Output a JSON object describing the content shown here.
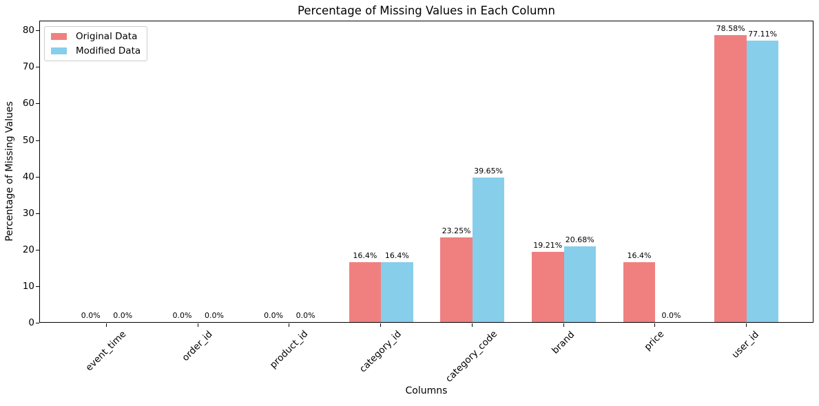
{
  "chart_data": {
    "type": "bar",
    "title": "Percentage of Missing Values in Each Column",
    "xlabel": "Columns",
    "ylabel": "Percentage of Missing Values",
    "categories": [
      "event_time",
      "order_id",
      "product_id",
      "category_id",
      "category_code",
      "brand",
      "price",
      "user_id"
    ],
    "series": [
      {
        "name": "Original Data",
        "color": "#F08080",
        "values": [
          0.0,
          0.0,
          0.0,
          16.4,
          23.25,
          19.21,
          16.4,
          78.58
        ],
        "value_labels": [
          "0.0%",
          "0.0%",
          "0.0%",
          "16.4%",
          "23.25%",
          "19.21%",
          "16.4%",
          "78.58%"
        ]
      },
      {
        "name": "Modified Data",
        "color": "#87CEEB",
        "values": [
          0.0,
          0.0,
          0.0,
          16.4,
          39.65,
          20.68,
          0.0,
          77.11
        ],
        "value_labels": [
          "0.0%",
          "0.0%",
          "0.0%",
          "16.4%",
          "39.65%",
          "20.68%",
          "0.0%",
          "77.11%"
        ]
      }
    ],
    "yticks": [
      0,
      10,
      20,
      30,
      40,
      50,
      60,
      70,
      80
    ],
    "ylim": [
      0,
      82.7
    ],
    "legend_position": "upper left",
    "grid": false,
    "axis_color": "#000000",
    "background_color": "#ffffff"
  }
}
